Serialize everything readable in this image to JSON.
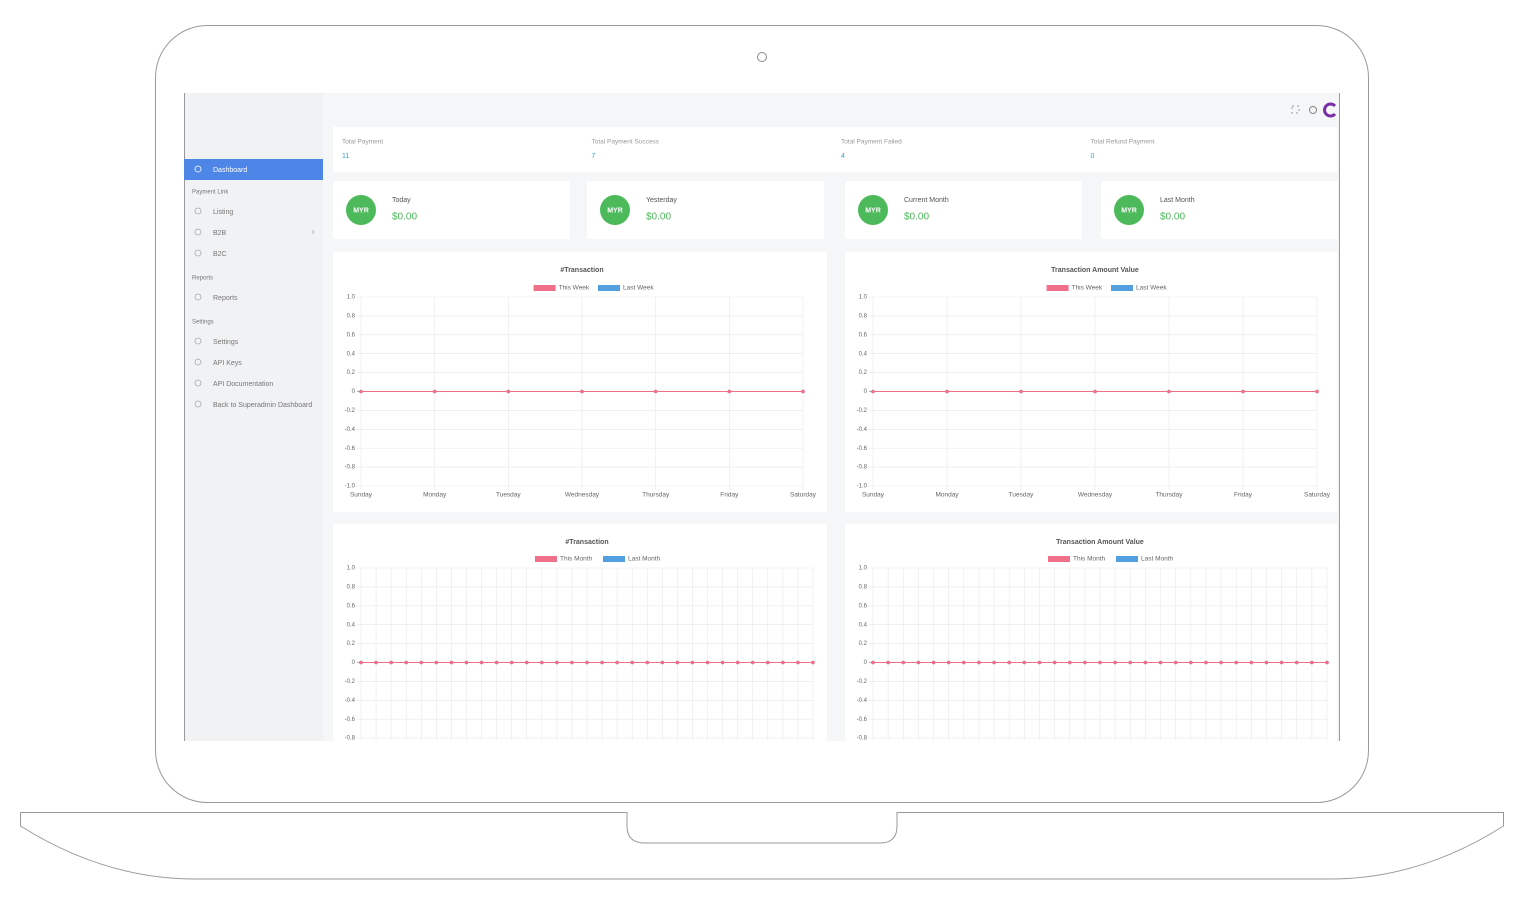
{
  "sidebar": {
    "active": "Dashboard",
    "sections": [
      {
        "title": "Payment Link",
        "items": [
          "Listing",
          "B2B",
          "B2C"
        ]
      },
      {
        "title": "Reports",
        "items": [
          "Reports"
        ]
      },
      {
        "title": "Settings",
        "items": [
          "Settings",
          "API Keys",
          "API Documentation",
          "Back to Superadmin Dashboard"
        ]
      }
    ]
  },
  "stats": [
    {
      "label": "Total Payment",
      "value": 11
    },
    {
      "label": "Total Payment Success",
      "value": 7
    },
    {
      "label": "Total Payment Failed",
      "value": 4
    },
    {
      "label": "Total Refund Payment",
      "value": 0
    }
  ],
  "cards": [
    {
      "badge": "MYR",
      "label": "Today",
      "amount": "$0.00"
    },
    {
      "badge": "MYR",
      "label": "Yesterday",
      "amount": "$0.00"
    },
    {
      "badge": "MYR",
      "label": "Current Month",
      "amount": "$0.00"
    },
    {
      "badge": "MYR",
      "label": "Last Month",
      "amount": "$0.00"
    }
  ],
  "chart_data": [
    {
      "type": "line",
      "title": "#Transaction",
      "categories": [
        "Sunday",
        "Monday",
        "Tuesday",
        "Wednesday",
        "Thursday",
        "Friday",
        "Saturday"
      ],
      "series": [
        {
          "name": "This Week",
          "color": "#f0708a",
          "values": [
            0,
            0,
            0,
            0,
            0,
            0,
            0
          ]
        },
        {
          "name": "Last Week",
          "color": "#52a0e0",
          "values": [
            0,
            0,
            0,
            0,
            0,
            0,
            0
          ]
        }
      ],
      "ylim": [
        -1,
        1
      ],
      "yticks": [
        {
          "value": 1,
          "label": "1.0"
        },
        0.8,
        0.6,
        0.4,
        0.2,
        0,
        -0.2,
        -0.4,
        -0.6,
        -0.8,
        {
          "value": -1,
          "label": "-1.0"
        }
      ],
      "grid": true
    },
    {
      "type": "line",
      "title": "Transaction Amount Value",
      "categories": [
        "Sunday",
        "Monday",
        "Tuesday",
        "Wednesday",
        "Thursday",
        "Friday",
        "Saturday"
      ],
      "series": [
        {
          "name": "This Week",
          "color": "#f0708a",
          "values": [
            0,
            0,
            0,
            0,
            0,
            0,
            0
          ]
        },
        {
          "name": "Last Week",
          "color": "#52a0e0",
          "values": [
            0,
            0,
            0,
            0,
            0,
            0,
            0
          ]
        }
      ],
      "ylim": [
        -1,
        1
      ],
      "yticks": [
        {
          "value": 1,
          "label": "1.0"
        },
        0.8,
        0.6,
        0.4,
        0.2,
        0,
        -0.2,
        -0.4,
        -0.6,
        -0.8,
        {
          "value": -1,
          "label": "-1.0"
        }
      ],
      "grid": true
    },
    {
      "type": "line",
      "title": "#Transaction",
      "categories": [
        null,
        null,
        null,
        null,
        null,
        null,
        null,
        null,
        null,
        null,
        null,
        null,
        null,
        null,
        null,
        null,
        null,
        null,
        null,
        null,
        null,
        null,
        null,
        null,
        null,
        null,
        null,
        null,
        null,
        null,
        null
      ],
      "series": [
        {
          "name": "This Month",
          "color": "#f0708a",
          "values": [
            0,
            0,
            0,
            0,
            0,
            0,
            0,
            0,
            0,
            0,
            0,
            0,
            0,
            0,
            0,
            0,
            0,
            0,
            0,
            0,
            0,
            0,
            0,
            0,
            0,
            0,
            0,
            0,
            0,
            0,
            0
          ]
        },
        {
          "name": "Last Month",
          "color": "#52a0e0",
          "values": [
            0,
            0,
            0,
            0,
            0,
            0,
            0,
            0,
            0,
            0,
            0,
            0,
            0,
            0,
            0,
            0,
            0,
            0,
            0,
            0,
            0,
            0,
            0,
            0,
            0,
            0,
            0,
            0,
            0,
            0,
            0
          ]
        }
      ],
      "ylim": [
        -1,
        1
      ],
      "yticks": [
        {
          "value": 1,
          "label": "1.0"
        },
        0.8,
        0.6,
        0.4,
        0.2,
        0,
        -0.2,
        -0.4,
        -0.6,
        -0.8
      ],
      "grid": true
    },
    {
      "type": "line",
      "title": "Transaction Amount Value",
      "categories": [
        null,
        null,
        null,
        null,
        null,
        null,
        null,
        null,
        null,
        null,
        null,
        null,
        null,
        null,
        null,
        null,
        null,
        null,
        null,
        null,
        null,
        null,
        null,
        null,
        null,
        null,
        null,
        null,
        null,
        null,
        null
      ],
      "series": [
        {
          "name": "This Month",
          "color": "#f0708a",
          "values": [
            0,
            0,
            0,
            0,
            0,
            0,
            0,
            0,
            0,
            0,
            0,
            0,
            0,
            0,
            0,
            0,
            0,
            0,
            0,
            0,
            0,
            0,
            0,
            0,
            0,
            0,
            0,
            0,
            0,
            0,
            0
          ]
        },
        {
          "name": "Last Month",
          "color": "#52a0e0",
          "values": [
            0,
            0,
            0,
            0,
            0,
            0,
            0,
            0,
            0,
            0,
            0,
            0,
            0,
            0,
            0,
            0,
            0,
            0,
            0,
            0,
            0,
            0,
            0,
            0,
            0,
            0,
            0,
            0,
            0,
            0,
            0
          ]
        }
      ],
      "ylim": [
        -1,
        1
      ],
      "yticks": [
        {
          "value": 1,
          "label": "1.0"
        },
        0.8,
        0.6,
        0.4,
        0.2,
        0,
        -0.2,
        -0.4,
        -0.6,
        -0.8
      ],
      "grid": true
    }
  ]
}
